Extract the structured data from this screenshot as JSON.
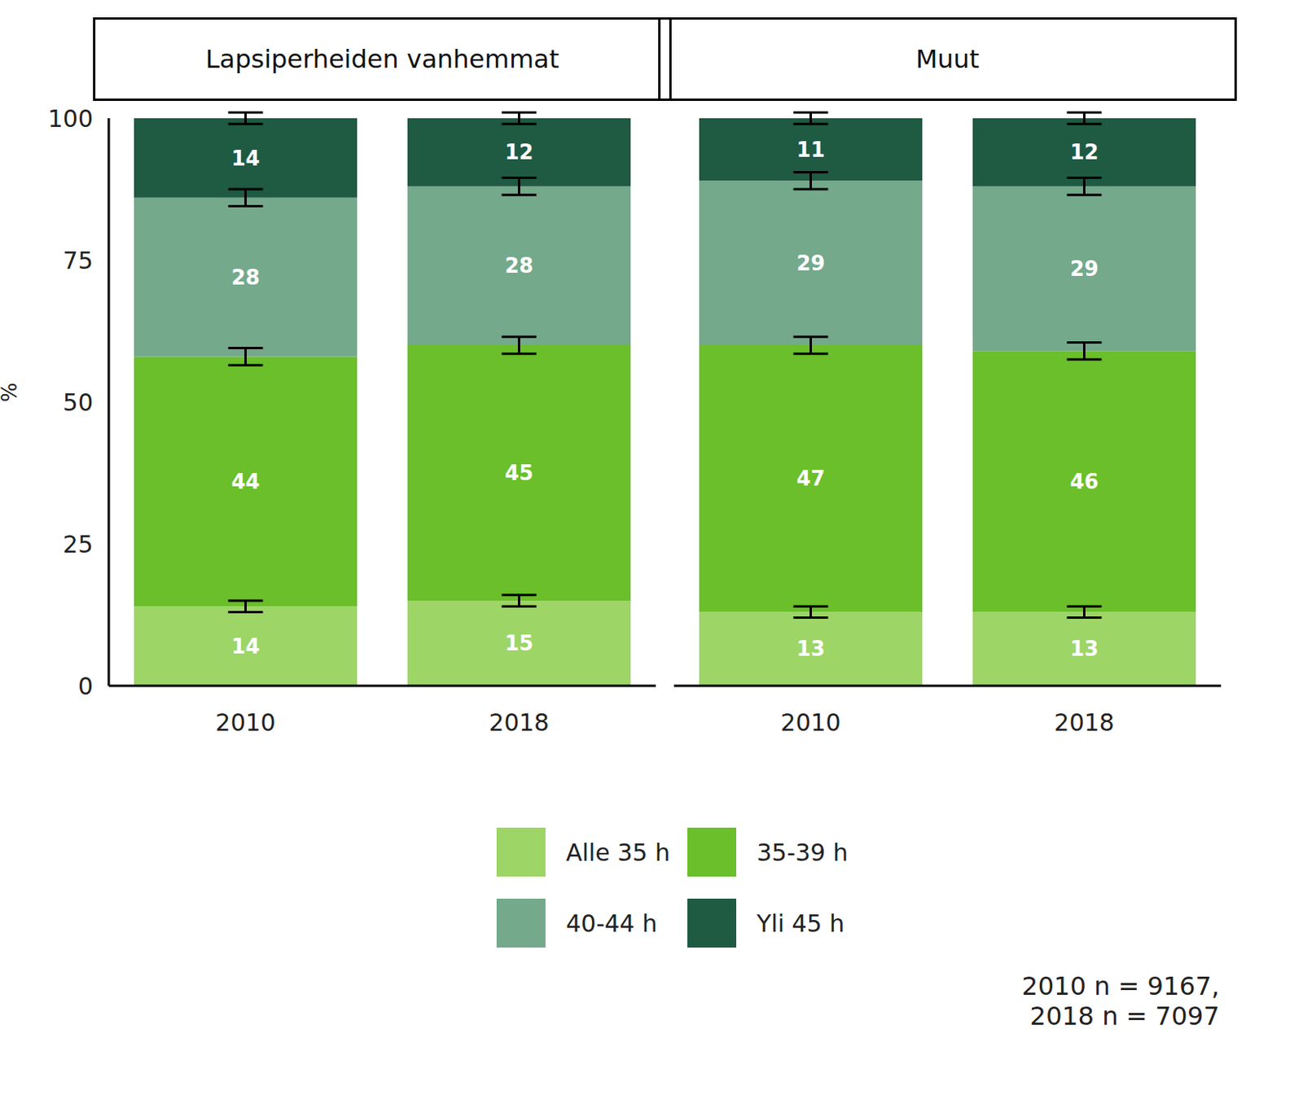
{
  "chart_data": [
    {
      "type": "bar",
      "title": "Lapsiperheiden vanhemmat",
      "y_label": "%",
      "stacked": true,
      "data_labels": true,
      "categories": [
        "2010",
        "2018"
      ],
      "ylim": [
        0,
        100
      ],
      "yticks": [
        0,
        25,
        50,
        75,
        100
      ],
      "series": [
        {
          "name": "Alle 35 h",
          "color": "#9dd566",
          "values": [
            14,
            15
          ],
          "errors": [
            1,
            1
          ]
        },
        {
          "name": "35-39 h",
          "color": "#6abf2a",
          "values": [
            44,
            45
          ],
          "errors": [
            1.5,
            1.5
          ]
        },
        {
          "name": "40-44 h",
          "color": "#74a98b",
          "values": [
            28,
            28
          ],
          "errors": [
            1.5,
            1.5
          ]
        },
        {
          "name": "Yli 45 h",
          "color": "#1f5a43",
          "values": [
            14,
            12
          ],
          "errors": [
            1,
            1
          ]
        }
      ],
      "annotations": [
        "2010 n = 9167,",
        "2018 n = 7097"
      ]
    },
    {
      "type": "bar",
      "title": "Muut",
      "stacked": true,
      "data_labels": true,
      "tick_labels": "x",
      "categories": [
        "2010",
        "2018"
      ],
      "ylim": [
        0,
        100
      ],
      "yticks": [
        0,
        25,
        50,
        75,
        100
      ],
      "series": [
        {
          "name": "Alle 35 h",
          "color": "#9dd566",
          "values": [
            13,
            13
          ],
          "errors": [
            1,
            1
          ]
        },
        {
          "name": "35-39 h",
          "color": "#6abf2a",
          "values": [
            47,
            46
          ],
          "errors": [
            1.5,
            1.5
          ]
        },
        {
          "name": "40-44 h",
          "color": "#74a98b",
          "values": [
            29,
            29
          ],
          "errors": [
            1.5,
            1.5
          ]
        },
        {
          "name": "Yli 45 h",
          "color": "#1f5a43",
          "values": [
            11,
            12
          ],
          "errors": [
            1,
            1
          ]
        }
      ]
    }
  ]
}
